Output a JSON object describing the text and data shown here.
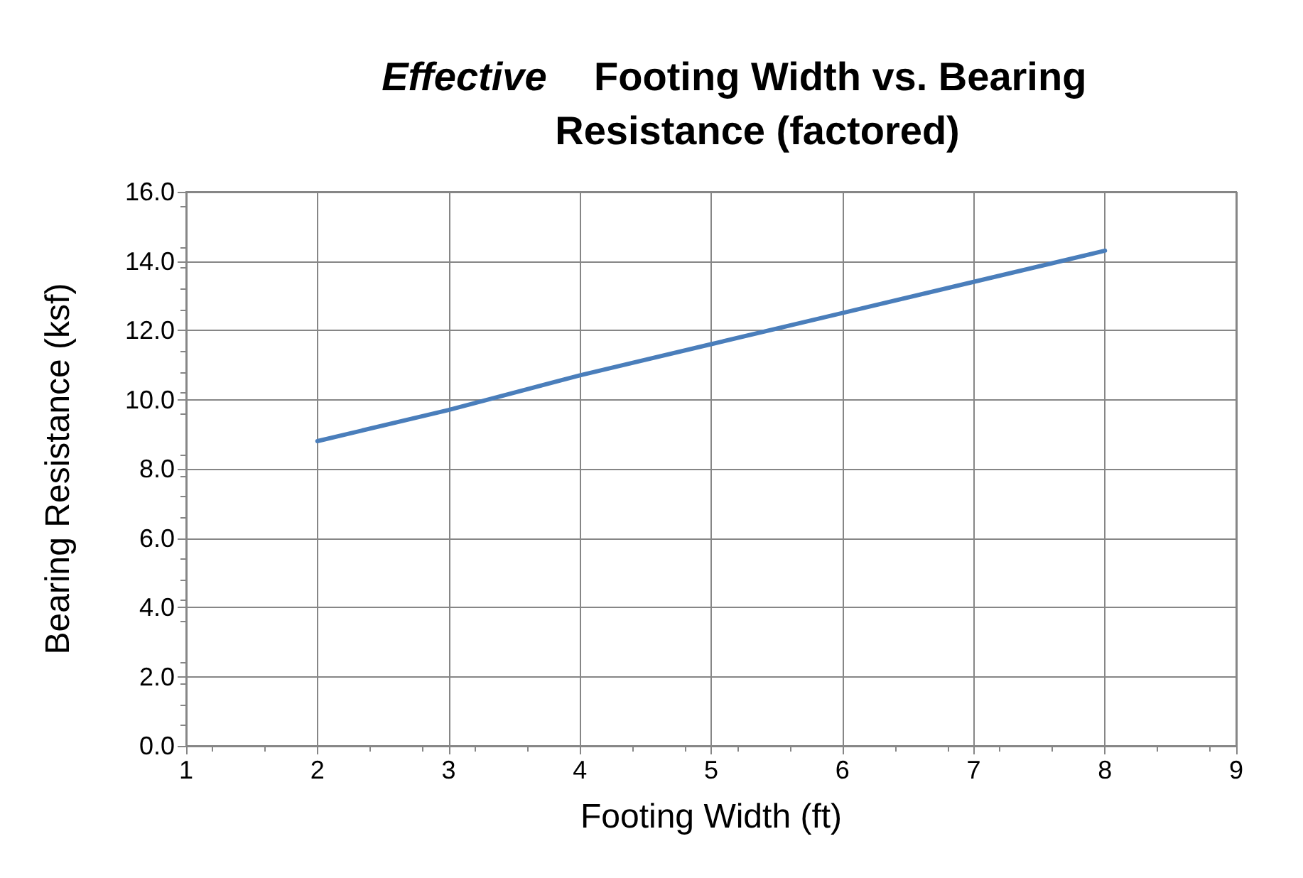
{
  "chart_data": {
    "type": "line",
    "title": "Effective Footing Width vs. Bearing Resistance (factored)",
    "xlabel": "Footing Width (ft)",
    "ylabel": "Bearing Resistance (ksf)",
    "x": [
      2,
      3,
      4,
      5,
      6,
      7,
      8
    ],
    "series": [
      {
        "color": "#4a7ebb",
        "values": [
          8.8,
          9.7,
          10.7,
          11.6,
          12.5,
          13.4,
          14.3
        ]
      }
    ],
    "xlim": [
      1,
      9
    ],
    "xticks": [
      1,
      2,
      3,
      4,
      5,
      6,
      7,
      8,
      9
    ],
    "ylim": [
      0,
      16
    ],
    "yticks": [
      {
        "value": 0,
        "label": "0.0"
      },
      {
        "value": 2,
        "label": "2.0"
      },
      {
        "value": 4,
        "label": "4.0"
      },
      {
        "value": 6,
        "label": "6.0"
      },
      {
        "value": 8,
        "label": "8.0"
      },
      {
        "value": 10,
        "label": "10.0"
      },
      {
        "value": 12,
        "label": "12.0"
      },
      {
        "value": 14,
        "label": "14.0"
      },
      {
        "value": 16,
        "label": "16.0"
      }
    ],
    "grid": true,
    "marker": "none",
    "line_style": "solid"
  }
}
